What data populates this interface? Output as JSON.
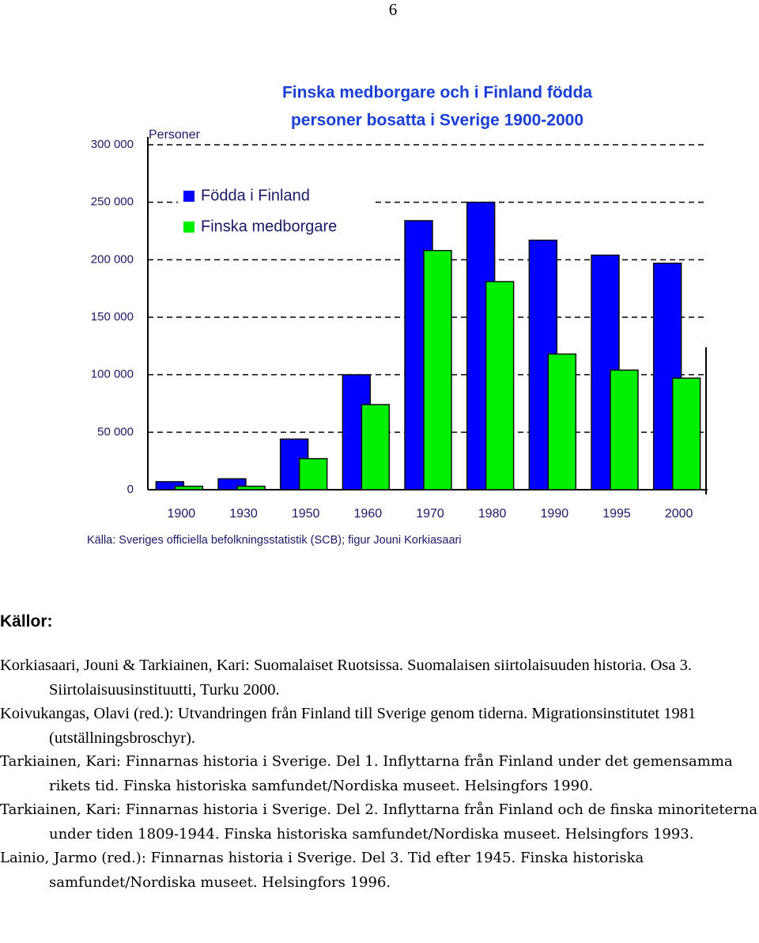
{
  "page_number": "6",
  "chart_data": {
    "type": "bar",
    "title": [
      "Finska medborgare och i Finland födda",
      "personer bosatta i Sverige 1900-2000"
    ],
    "y_label": "Personer",
    "source": "Källa: Sveriges officiella befolkningsstatistik (SCB); figur Jouni Korkiasaari",
    "categories": [
      "1900",
      "1930",
      "1950",
      "1960",
      "1970",
      "1980",
      "1990",
      "1995",
      "2000"
    ],
    "series": [
      {
        "name": "Födda i Finland",
        "color": "#0000ff",
        "values": [
          7000,
          9500,
          44000,
          100000,
          234000,
          250000,
          217000,
          204000,
          197000
        ]
      },
      {
        "name": "Finska medborgare",
        "color": "#00ee00",
        "values": [
          3000,
          3000,
          27000,
          74000,
          208000,
          181000,
          118000,
          104000,
          97000
        ]
      }
    ],
    "ylim": [
      0,
      300000
    ],
    "yticks": [
      0,
      {
        "value": 50000,
        "label": "50 000"
      },
      {
        "value": 100000,
        "label": "100 000"
      },
      {
        "value": 150000,
        "label": "150 000"
      },
      {
        "value": 200000,
        "label": "200 000"
      },
      {
        "value": 250000,
        "label": "250 000"
      },
      {
        "value": 300000,
        "label": "300 000"
      }
    ],
    "grid": true,
    "legend": "upper left"
  },
  "sources": {
    "heading": "Källor:",
    "items": [
      "Korkiasaari, Jouni & Tarkiainen, Kari: Suomalaiset Ruotsissa. Suomalaisen siirtolaisuuden historia. Osa 3. Siirtolaisuusinstituutti, Turku 2000.",
      "Koivukangas, Olavi (red.): Utvandringen från Finland till Sverige genom tiderna. Migrationsinstitutet 1981 (utställningsbroschyr).",
      "Tarkiainen, Kari: Finnarnas historia i Sverige. Del 1. Inflyttarna från Finland under det gemensamma rikets tid. Finska historiska samfundet/Nordiska museet. Helsingfors 1990.",
      "Tarkiainen, Kari: Finnarnas historia i Sverige. Del 2. Inflyttarna från Finland och de finska minoriteterna under tiden 1809-1944. Finska historiska samfundet/Nordiska museet. Helsingfors 1993.",
      "Lainio, Jarmo (red.): Finnarnas historia i Sverige. Del 3. Tid efter 1945. Finska historiska samfundet/Nordiska museet. Helsingfors 1996."
    ]
  }
}
